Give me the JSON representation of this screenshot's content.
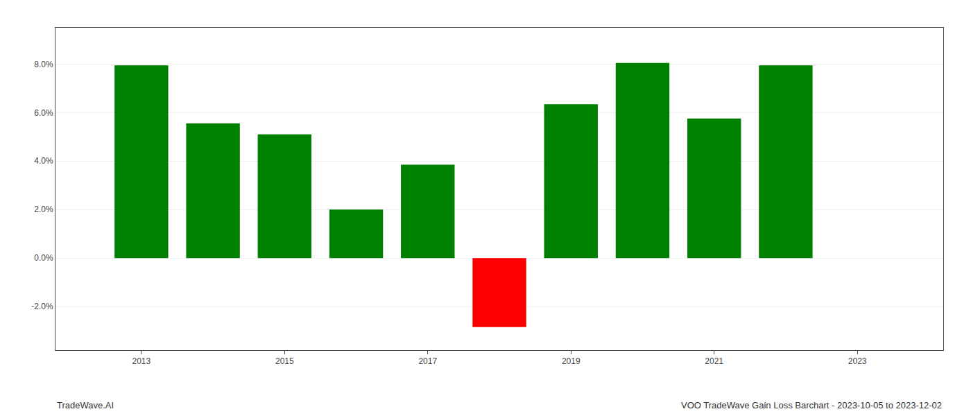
{
  "chart_data": {
    "type": "bar",
    "x": [
      2013,
      2014,
      2015,
      2016,
      2017,
      2018,
      2019,
      2020,
      2021,
      2022,
      2023
    ],
    "values": [
      0.0795,
      0.0555,
      0.051,
      0.02,
      0.0385,
      -0.0285,
      0.0635,
      0.0805,
      0.0575,
      0.0795,
      null
    ],
    "colors": [
      "#008000",
      "#008000",
      "#008000",
      "#008000",
      "#008000",
      "#ff0000",
      "#008000",
      "#008000",
      "#008000",
      "#008000",
      "#008000"
    ],
    "xlim": [
      2011.8,
      2024.2
    ],
    "xticks": [
      2013,
      2015,
      2017,
      2019,
      2021,
      2023
    ],
    "ylim": [
      -0.038,
      0.095
    ],
    "yticks": [
      {
        "value": -0.02,
        "label": "-2.0%"
      },
      {
        "value": 0.0,
        "label": "0.0%"
      },
      {
        "value": 0.02,
        "label": "2.0%"
      },
      {
        "value": 0.04,
        "label": "4.0%"
      },
      {
        "value": 0.06,
        "label": "6.0%"
      },
      {
        "value": 0.08,
        "label": "8.0%"
      }
    ],
    "grid": true,
    "annotations": [
      "TradeWave.AI",
      "VOO TradeWave Gain Loss Barchart - 2023-10-05 to 2023-12-02"
    ]
  }
}
